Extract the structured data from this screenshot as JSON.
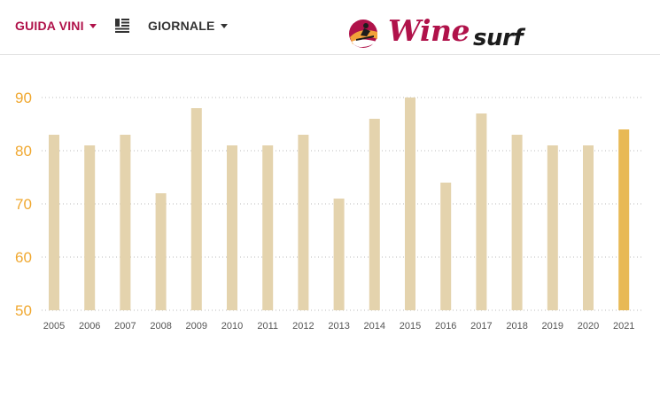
{
  "nav": {
    "guida_label": "GUIDA VINI",
    "giornale_label": "GIORNALE"
  },
  "logo": {
    "word_primary": "Wine",
    "word_secondary": "surf"
  },
  "colors": {
    "brand": "#b0124a",
    "bar": "#e4d3ad",
    "bar_highlight": "#e8b955",
    "ytick": "#f0a830",
    "grid": "#bbbbbb"
  },
  "chart_data": {
    "type": "bar",
    "categories": [
      "2005",
      "2006",
      "2007",
      "2008",
      "2009",
      "2010",
      "2011",
      "2012",
      "2013",
      "2014",
      "2015",
      "2016",
      "2017",
      "2018",
      "2019",
      "2020",
      "2021"
    ],
    "values": [
      83,
      81,
      83,
      72,
      88,
      81,
      81,
      83,
      71,
      86,
      90,
      74,
      87,
      83,
      81,
      81,
      84
    ],
    "highlight_category": "2021",
    "yticks": [
      50,
      60,
      70,
      80,
      90
    ],
    "ylim": [
      50,
      90
    ],
    "grid": true,
    "grid_style": "dotted",
    "title": "",
    "xlabel": "",
    "ylabel": ""
  }
}
